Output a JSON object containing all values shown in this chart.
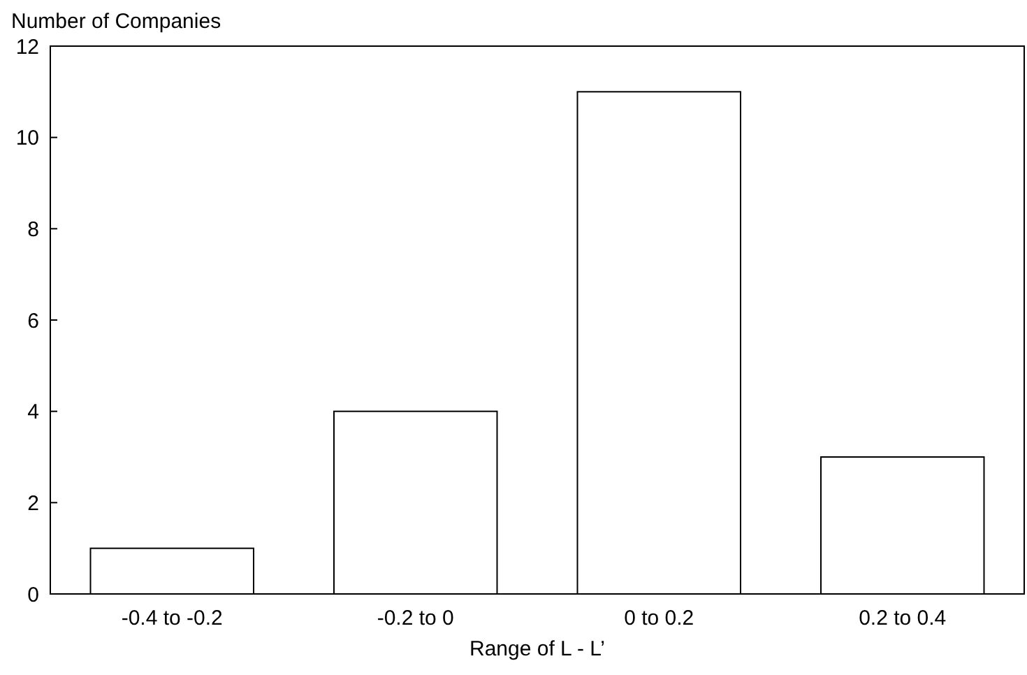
{
  "chart_data": {
    "type": "bar",
    "ylabel": "Number of Companies",
    "xlabel": "Range of L - L’",
    "categories": [
      "-0.4 to -0.2",
      "-0.2 to 0",
      "0 to 0.2",
      "0.2 to 0.4"
    ],
    "values": [
      1,
      4,
      11,
      3
    ],
    "color": "#ffffff",
    "ylim": [
      0,
      12
    ],
    "yticks": [
      0,
      2,
      4,
      6,
      8,
      10,
      12
    ],
    "grid": false
  }
}
